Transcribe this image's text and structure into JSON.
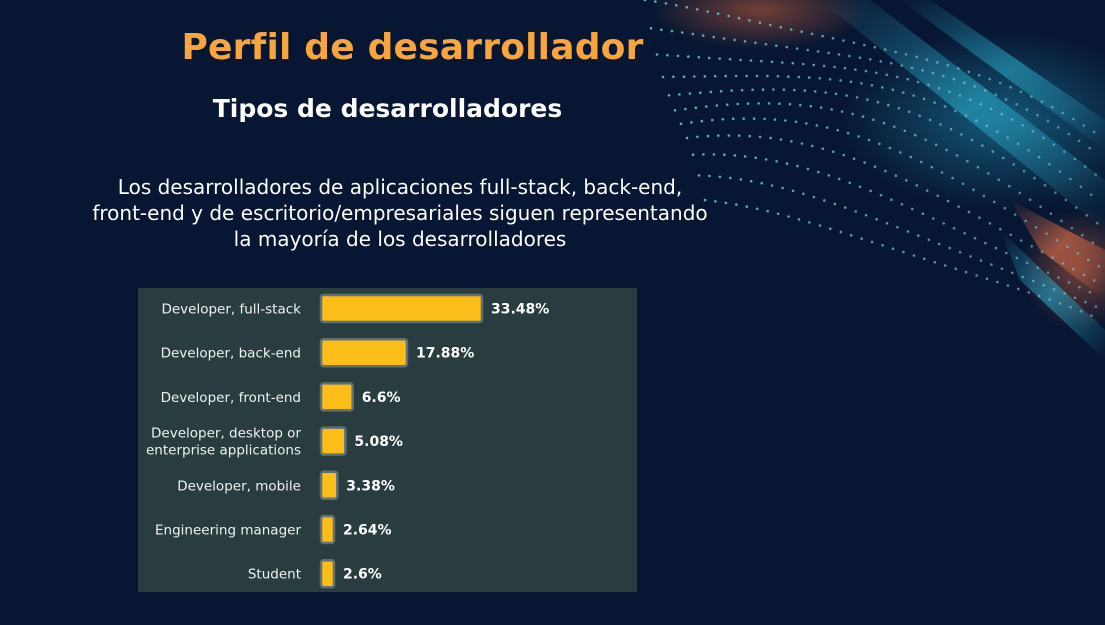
{
  "header": {
    "title": "Perfil de desarrollador",
    "subtitle": "Tipos de desarrolladores"
  },
  "description": "Los desarrolladores de aplicaciones full-stack, back-end, front-end y de escritorio/empresariales siguen representando la mayoría de los desarrolladores",
  "colors": {
    "background": "#071632",
    "title": "#f7a53c",
    "panel": "#293d41",
    "bar_fill": "#fbbd18",
    "bar_border": "#5f6f78"
  },
  "chart_data": {
    "type": "bar",
    "orientation": "horizontal",
    "categories": [
      [
        "Developer, full-stack"
      ],
      [
        "Developer, back-end"
      ],
      [
        "Developer, front-end"
      ],
      [
        "Developer, desktop or",
        "enterprise applications"
      ],
      [
        "Developer, mobile"
      ],
      [
        "Engineering manager"
      ],
      [
        "Student"
      ]
    ],
    "values": [
      33.48,
      17.88,
      6.6,
      5.08,
      3.38,
      2.64,
      2.6
    ],
    "value_labels": [
      "33.48%",
      "17.88%",
      "6.6%",
      "5.08%",
      "3.38%",
      "2.64%",
      "2.6%"
    ],
    "xlim": [
      0,
      33.48
    ],
    "grid": false,
    "legend": "none"
  }
}
